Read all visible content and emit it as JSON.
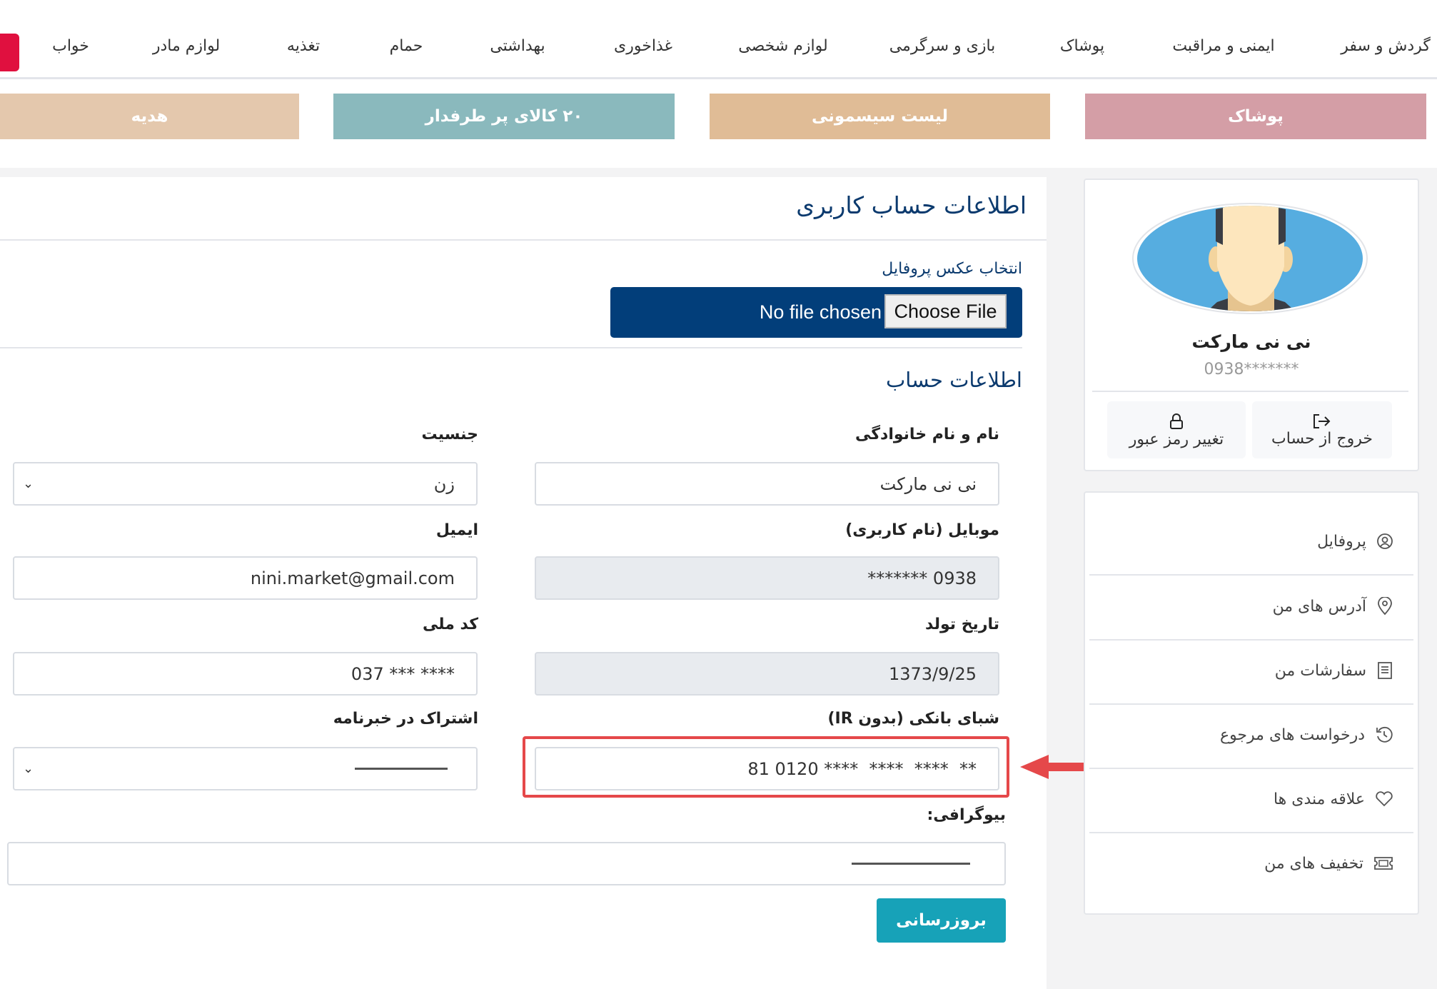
{
  "nav": {
    "items": [
      "گردش و سفر",
      "ایمنی و مراقبت",
      "پوشاک",
      "بازی و سرگرمی",
      "لوازم شخصی",
      "غذاخوری",
      "بهداشتی",
      "حمام",
      "تغذیه",
      "لوازم مادر",
      "خواب"
    ]
  },
  "banners": [
    {
      "label": "پوشاک",
      "color": "#d49ea6"
    },
    {
      "label": "لیست سیسمونی",
      "color": "#e0bc96"
    },
    {
      "label": "۲۰ کالای پر طرفدار",
      "color": "#8ab9bd"
    },
    {
      "label": "هدیه",
      "color": "#e4c8ad"
    }
  ],
  "profile": {
    "name": "نی نی مارکت",
    "phone": "0938*******",
    "change_password": "تغییر رمز عبور",
    "logout": "خروج از حساب"
  },
  "menu": [
    {
      "label": "پروفایل",
      "icon": "user-circle-icon"
    },
    {
      "label": "آدرس های من",
      "icon": "location-pin-icon"
    },
    {
      "label": "سفارشات من",
      "icon": "receipt-icon"
    },
    {
      "label": "درخواست های مرجوع",
      "icon": "history-icon"
    },
    {
      "label": "علاقه مندی ها",
      "icon": "heart-icon"
    },
    {
      "label": "تخفیف های من",
      "icon": "ticket-icon"
    }
  ],
  "form": {
    "title": "اطلاعات حساب کاربری",
    "photo_label": "انتخاب عکس پروفایل",
    "choose_file": "Choose File",
    "no_file": "No file chosen",
    "section": "اطلاعات حساب",
    "fields": {
      "name": {
        "label": "نام و نام خانوادگی",
        "value": "نی نی مارکت"
      },
      "gender": {
        "label": "جنسیت",
        "value": "زن"
      },
      "mobile": {
        "label": "موبایل (نام کاربری)",
        "value": "0938 *******"
      },
      "email": {
        "label": "ایمیل",
        "value": "nini.market@gmail.com"
      },
      "birth": {
        "label": "تاریخ تولد",
        "value": "1373/9/25"
      },
      "national_code": {
        "label": "کد ملی",
        "value": "037 *** ****"
      },
      "sheba": {
        "label": "شبای بانکی (بدون IR)",
        "value": "81 0120 ****  ****  ****  **"
      },
      "newsletter": {
        "label": "اشتراک در خبرنامه",
        "value": ""
      },
      "bio": {
        "label": "بیوگرافی:",
        "value": ""
      }
    },
    "submit": "بروزرسانی"
  },
  "colors": {
    "accent": "#17a2b8",
    "file_box": "#023e7a",
    "highlight": "#e5484a",
    "title": "#0b3a6e"
  }
}
